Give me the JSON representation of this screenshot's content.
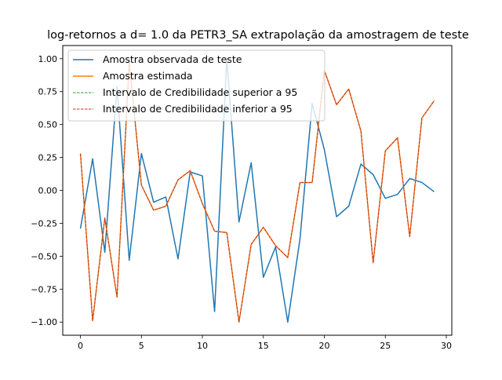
{
  "chart_data": {
    "type": "line",
    "title": "log-retornos a d=  1.0 da PETR3_SA extrapolação da amostragem de teste",
    "xlabel": "",
    "ylabel": "",
    "xlim": [
      -1.45,
      30.45
    ],
    "ylim": [
      -1.1,
      1.1
    ],
    "xticks": [
      0,
      5,
      10,
      15,
      20,
      25,
      30
    ],
    "xtick_labels": [
      "0",
      "5",
      "10",
      "15",
      "20",
      "25",
      "30"
    ],
    "yticks": [
      1.0,
      0.75,
      0.5,
      0.25,
      0.0,
      -0.25,
      -0.5,
      -0.75,
      -1.0
    ],
    "ytick_labels": [
      "1.00",
      "0.75",
      "0.50",
      "0.25",
      "0.00",
      "−0.25",
      "−0.50",
      "−0.75",
      "−1.00"
    ],
    "grid": false,
    "legend_position": "top-left",
    "x": [
      0,
      1,
      2,
      3,
      4,
      5,
      6,
      7,
      8,
      9,
      10,
      11,
      12,
      13,
      14,
      15,
      16,
      17,
      18,
      19,
      20,
      21,
      22,
      23,
      24,
      25,
      26,
      27,
      28,
      29
    ],
    "series": [
      {
        "name": "Amostra observada de teste",
        "color": "#1f77b4",
        "style": "solid",
        "values": [
          -0.29,
          0.24,
          -0.47,
          0.79,
          -0.53,
          0.28,
          -0.09,
          -0.05,
          -0.52,
          0.14,
          0.11,
          -0.92,
          1.0,
          -0.24,
          0.21,
          -0.66,
          -0.43,
          -1.0,
          -0.37,
          0.66,
          0.31,
          -0.2,
          -0.12,
          0.2,
          0.12,
          -0.06,
          -0.03,
          0.09,
          0.06,
          -0.01
        ]
      },
      {
        "name": "Amostra estimada",
        "color": "#ff7f0e",
        "style": "solid",
        "values": [
          0.28,
          -0.99,
          -0.21,
          -0.81,
          0.97,
          0.04,
          -0.15,
          -0.12,
          0.08,
          0.15,
          -0.1,
          -0.31,
          -0.32,
          -1.0,
          -0.41,
          -0.28,
          -0.42,
          -0.51,
          0.06,
          0.06,
          0.91,
          0.65,
          0.77,
          0.45,
          -0.55,
          0.3,
          0.4,
          -0.35,
          0.55,
          0.68
        ]
      },
      {
        "name": "Intervalo de Credibilidade superior a 95",
        "color": "#2ca02c",
        "style": "dashed",
        "values": [
          0.28,
          -0.99,
          -0.21,
          -0.81,
          0.97,
          0.04,
          -0.15,
          -0.12,
          0.08,
          0.15,
          -0.1,
          -0.31,
          -0.32,
          -1.0,
          -0.41,
          -0.28,
          -0.42,
          -0.51,
          0.06,
          0.06,
          0.91,
          0.65,
          0.77,
          0.45,
          -0.55,
          0.3,
          0.4,
          -0.35,
          0.55,
          0.68
        ]
      },
      {
        "name": "Intervalo de Credibilidade inferior a 95",
        "color": "#d62728",
        "style": "dashed",
        "values": [
          0.28,
          -0.99,
          -0.21,
          -0.81,
          0.97,
          0.04,
          -0.15,
          -0.12,
          0.08,
          0.15,
          -0.1,
          -0.31,
          -0.32,
          -1.0,
          -0.41,
          -0.28,
          -0.42,
          -0.51,
          0.06,
          0.06,
          0.91,
          0.65,
          0.77,
          0.45,
          -0.55,
          0.3,
          0.4,
          -0.35,
          0.55,
          0.68
        ]
      }
    ]
  }
}
